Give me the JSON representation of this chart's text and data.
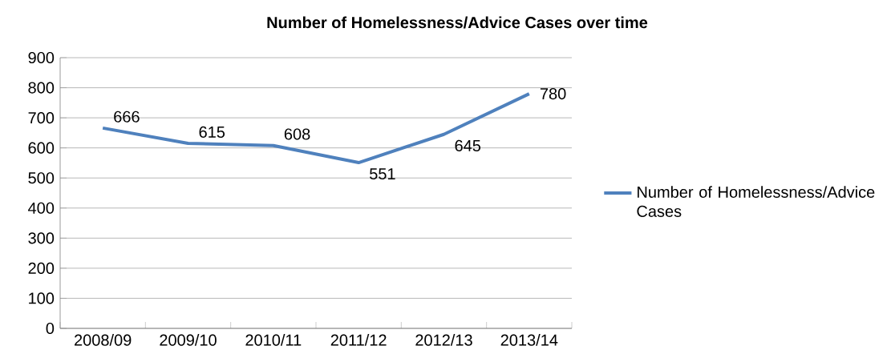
{
  "chart_data": {
    "type": "line",
    "title": "Number of Homelessness/Advice Cases over time",
    "categories": [
      "2008/09",
      "2009/10",
      "2010/11",
      "2011/12",
      "2012/13",
      "2013/14"
    ],
    "series": [
      {
        "name": "Number of Homelessness/Advice Cases",
        "color": "#4f81bd",
        "values": [
          666,
          615,
          608,
          551,
          645,
          780
        ]
      }
    ],
    "ylim": [
      0,
      900
    ],
    "yticks": [
      0,
      100,
      200,
      300,
      400,
      500,
      600,
      700,
      800,
      900
    ],
    "grid": "y",
    "legend": "right",
    "data_labels": true,
    "marker": "none",
    "line_style": "solid"
  }
}
